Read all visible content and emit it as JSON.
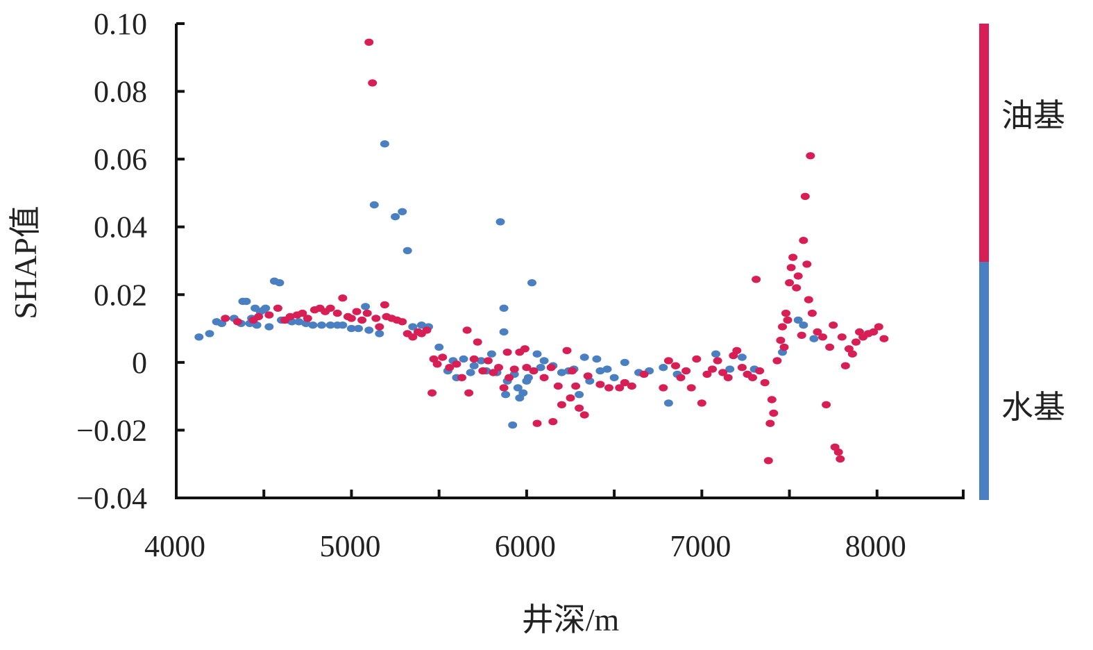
{
  "chart_data": {
    "type": "scatter",
    "title": "",
    "xlabel": "井深/m",
    "ylabel": "SHAP值",
    "xlim": [
      4000,
      8500
    ],
    "ylim": [
      -0.04,
      0.1
    ],
    "x_ticks": [
      4000,
      5000,
      6000,
      7000,
      8000
    ],
    "x_tick_labels": [
      "4000",
      "5000",
      "6000",
      "7000",
      "8000"
    ],
    "y_ticks": [
      -0.04,
      -0.02,
      0,
      0.02,
      0.04,
      0.06,
      0.08,
      0.1
    ],
    "y_tick_labels": [
      "−0.04",
      "−0.02",
      "0",
      "0.02",
      "0.04",
      "0.06",
      "0.08",
      "0.10"
    ],
    "grid": false,
    "colorbar": {
      "labels": [
        "油基",
        "水基"
      ],
      "top_color": "#d81f55",
      "bottom_color": "#4a7fc1"
    },
    "series": [
      {
        "name": "水基",
        "color": "#4a7fc1",
        "points": [
          [
            4130,
            0.0075
          ],
          [
            4190,
            0.0085
          ],
          [
            4230,
            0.012
          ],
          [
            4260,
            0.0115
          ],
          [
            4330,
            0.013
          ],
          [
            4370,
            0.0115
          ],
          [
            4380,
            0.018
          ],
          [
            4400,
            0.018
          ],
          [
            4420,
            0.0115
          ],
          [
            4430,
            0.013
          ],
          [
            4450,
            0.016
          ],
          [
            4460,
            0.011
          ],
          [
            4480,
            0.015
          ],
          [
            4500,
            0.0155
          ],
          [
            4510,
            0.016
          ],
          [
            4530,
            0.0105
          ],
          [
            4560,
            0.024
          ],
          [
            4590,
            0.0235
          ],
          [
            4600,
            0.0125
          ],
          [
            4640,
            0.0125
          ],
          [
            4660,
            0.012
          ],
          [
            4700,
            0.012
          ],
          [
            4740,
            0.0115
          ],
          [
            4780,
            0.011
          ],
          [
            4830,
            0.011
          ],
          [
            4880,
            0.011
          ],
          [
            4920,
            0.011
          ],
          [
            4950,
            0.011
          ],
          [
            5000,
            0.01
          ],
          [
            5040,
            0.01
          ],
          [
            5080,
            0.0165
          ],
          [
            5100,
            0.0095
          ],
          [
            5130,
            0.0465
          ],
          [
            5160,
            0.0085
          ],
          [
            5190,
            0.0645
          ],
          [
            5250,
            0.043
          ],
          [
            5290,
            0.0445
          ],
          [
            5320,
            0.033
          ],
          [
            5350,
            0.0105
          ],
          [
            5400,
            0.011
          ],
          [
            5440,
            0.0105
          ],
          [
            5500,
            0.0045
          ],
          [
            5550,
            -0.0025
          ],
          [
            5580,
            0.0005
          ],
          [
            5600,
            -0.0045
          ],
          [
            5640,
            0.001
          ],
          [
            5680,
            -0.003
          ],
          [
            5700,
            -0.001
          ],
          [
            5740,
            0.0005
          ],
          [
            5770,
            -0.0025
          ],
          [
            5800,
            0.0025
          ],
          [
            5830,
            -0.003
          ],
          [
            5850,
            0.0415
          ],
          [
            5870,
            0.016
          ],
          [
            5870,
            0.009
          ],
          [
            5880,
            -0.0095
          ],
          [
            5890,
            -0.0055
          ],
          [
            5920,
            -0.0185
          ],
          [
            5930,
            -0.0035
          ],
          [
            5950,
            -0.0075
          ],
          [
            5960,
            -0.0105
          ],
          [
            5980,
            -0.009
          ],
          [
            6000,
            -0.0055
          ],
          [
            6010,
            -0.0045
          ],
          [
            6030,
            0.0235
          ],
          [
            6060,
            0.0025
          ],
          [
            6080,
            -0.0015
          ],
          [
            6100,
            0.0005
          ],
          [
            6150,
            -0.001
          ],
          [
            6200,
            -0.003
          ],
          [
            6240,
            -0.0025
          ],
          [
            6270,
            -0.002
          ],
          [
            6300,
            -0.0095
          ],
          [
            6330,
            0.0015
          ],
          [
            6360,
            -0.0055
          ],
          [
            6400,
            0.001
          ],
          [
            6420,
            -0.0025
          ],
          [
            6460,
            -0.002
          ],
          [
            6500,
            -0.0045
          ],
          [
            6560,
            0.0
          ],
          [
            6640,
            -0.003
          ],
          [
            6700,
            -0.0025
          ],
          [
            6780,
            -0.0015
          ],
          [
            6810,
            -0.012
          ],
          [
            6860,
            -0.0035
          ],
          [
            7080,
            0.0025
          ],
          [
            7160,
            -0.002
          ],
          [
            7230,
            0.0015
          ],
          [
            7300,
            -0.002
          ],
          [
            7460,
            0.003
          ],
          [
            7550,
            0.0125
          ],
          [
            7580,
            0.011
          ],
          [
            7640,
            0.007
          ]
        ]
      },
      {
        "name": "油基",
        "color": "#d81f55",
        "points": [
          [
            4280,
            0.013
          ],
          [
            4350,
            0.012
          ],
          [
            4440,
            0.0125
          ],
          [
            4470,
            0.0135
          ],
          [
            4530,
            0.014
          ],
          [
            4580,
            0.016
          ],
          [
            4620,
            0.0125
          ],
          [
            4650,
            0.0135
          ],
          [
            4690,
            0.014
          ],
          [
            4720,
            0.0145
          ],
          [
            4750,
            0.013
          ],
          [
            4790,
            0.0155
          ],
          [
            4820,
            0.016
          ],
          [
            4850,
            0.015
          ],
          [
            4880,
            0.016
          ],
          [
            4920,
            0.0145
          ],
          [
            4950,
            0.019
          ],
          [
            4980,
            0.0135
          ],
          [
            5000,
            0.013
          ],
          [
            5030,
            0.015
          ],
          [
            5060,
            0.0125
          ],
          [
            5090,
            0.0145
          ],
          [
            5100,
            0.0945
          ],
          [
            5120,
            0.0825
          ],
          [
            5140,
            0.013
          ],
          [
            5160,
            0.0105
          ],
          [
            5190,
            0.017
          ],
          [
            5200,
            0.0135
          ],
          [
            5230,
            0.013
          ],
          [
            5260,
            0.0125
          ],
          [
            5290,
            0.012
          ],
          [
            5320,
            0.0085
          ],
          [
            5350,
            0.0075
          ],
          [
            5380,
            0.009
          ],
          [
            5400,
            0.0085
          ],
          [
            5430,
            0.0095
          ],
          [
            5460,
            -0.009
          ],
          [
            5470,
            0.001
          ],
          [
            5490,
            -0.0005
          ],
          [
            5520,
            0.0015
          ],
          [
            5560,
            -0.0015
          ],
          [
            5600,
            -0.0005
          ],
          [
            5630,
            -0.0045
          ],
          [
            5660,
            0.0095
          ],
          [
            5670,
            -0.009
          ],
          [
            5700,
            0.001
          ],
          [
            5720,
            0.006
          ],
          [
            5750,
            -0.0025
          ],
          [
            5780,
            0.0005
          ],
          [
            5810,
            -0.003
          ],
          [
            5840,
            -0.0015
          ],
          [
            5870,
            -0.0075
          ],
          [
            5890,
            0.003
          ],
          [
            5900,
            -0.0045
          ],
          [
            5930,
            -0.002
          ],
          [
            5960,
            0.003
          ],
          [
            5990,
            0.004
          ],
          [
            6000,
            -0.0015
          ],
          [
            6040,
            -0.0025
          ],
          [
            6060,
            -0.018
          ],
          [
            6100,
            -0.0045
          ],
          [
            6140,
            -0.0015
          ],
          [
            6150,
            -0.0175
          ],
          [
            6180,
            -0.007
          ],
          [
            6200,
            -0.0125
          ],
          [
            6230,
            0.0035
          ],
          [
            6250,
            -0.0105
          ],
          [
            6260,
            -0.0025
          ],
          [
            6280,
            -0.007
          ],
          [
            6300,
            -0.0135
          ],
          [
            6330,
            -0.0155
          ],
          [
            6350,
            -0.004
          ],
          [
            6420,
            -0.0065
          ],
          [
            6470,
            -0.0075
          ],
          [
            6530,
            -0.0075
          ],
          [
            6560,
            -0.006
          ],
          [
            6600,
            -0.007
          ],
          [
            6670,
            -0.0035
          ],
          [
            6780,
            -0.0075
          ],
          [
            6810,
            0.0005
          ],
          [
            6850,
            -0.001
          ],
          [
            6880,
            -0.0045
          ],
          [
            6910,
            -0.0025
          ],
          [
            6940,
            -0.0075
          ],
          [
            6970,
            0.001
          ],
          [
            7000,
            -0.012
          ],
          [
            7030,
            -0.0035
          ],
          [
            7060,
            -0.002
          ],
          [
            7090,
            0.0005
          ],
          [
            7120,
            -0.003
          ],
          [
            7150,
            -0.0045
          ],
          [
            7180,
            0.002
          ],
          [
            7200,
            0.0035
          ],
          [
            7230,
            -0.0015
          ],
          [
            7260,
            -0.0035
          ],
          [
            7290,
            -0.0045
          ],
          [
            7310,
            0.0245
          ],
          [
            7330,
            -0.0025
          ],
          [
            7360,
            -0.006
          ],
          [
            7380,
            -0.029
          ],
          [
            7390,
            -0.018
          ],
          [
            7400,
            -0.011
          ],
          [
            7410,
            -0.015
          ],
          [
            7430,
            0.0005
          ],
          [
            7450,
            0.0065
          ],
          [
            7460,
            0.0105
          ],
          [
            7470,
            0.0045
          ],
          [
            7480,
            0.0145
          ],
          [
            7490,
            0.0125
          ],
          [
            7500,
            0.0235
          ],
          [
            7510,
            0.028
          ],
          [
            7520,
            0.031
          ],
          [
            7540,
            0.022
          ],
          [
            7550,
            0.0255
          ],
          [
            7570,
            0.008
          ],
          [
            7580,
            0.036
          ],
          [
            7590,
            0.049
          ],
          [
            7600,
            0.029
          ],
          [
            7610,
            0.0185
          ],
          [
            7620,
            0.061
          ],
          [
            7630,
            0.0145
          ],
          [
            7660,
            0.009
          ],
          [
            7690,
            0.0075
          ],
          [
            7710,
            -0.0125
          ],
          [
            7730,
            0.0045
          ],
          [
            7750,
            0.011
          ],
          [
            7760,
            -0.025
          ],
          [
            7780,
            -0.0265
          ],
          [
            7790,
            -0.0285
          ],
          [
            7800,
            0.0075
          ],
          [
            7820,
            -0.001
          ],
          [
            7840,
            0.004
          ],
          [
            7860,
            0.0025
          ],
          [
            7880,
            0.006
          ],
          [
            7900,
            0.009
          ],
          [
            7920,
            0.0075
          ],
          [
            7950,
            0.0085
          ],
          [
            7980,
            0.009
          ],
          [
            8010,
            0.0105
          ],
          [
            8040,
            0.007
          ]
        ]
      }
    ]
  }
}
